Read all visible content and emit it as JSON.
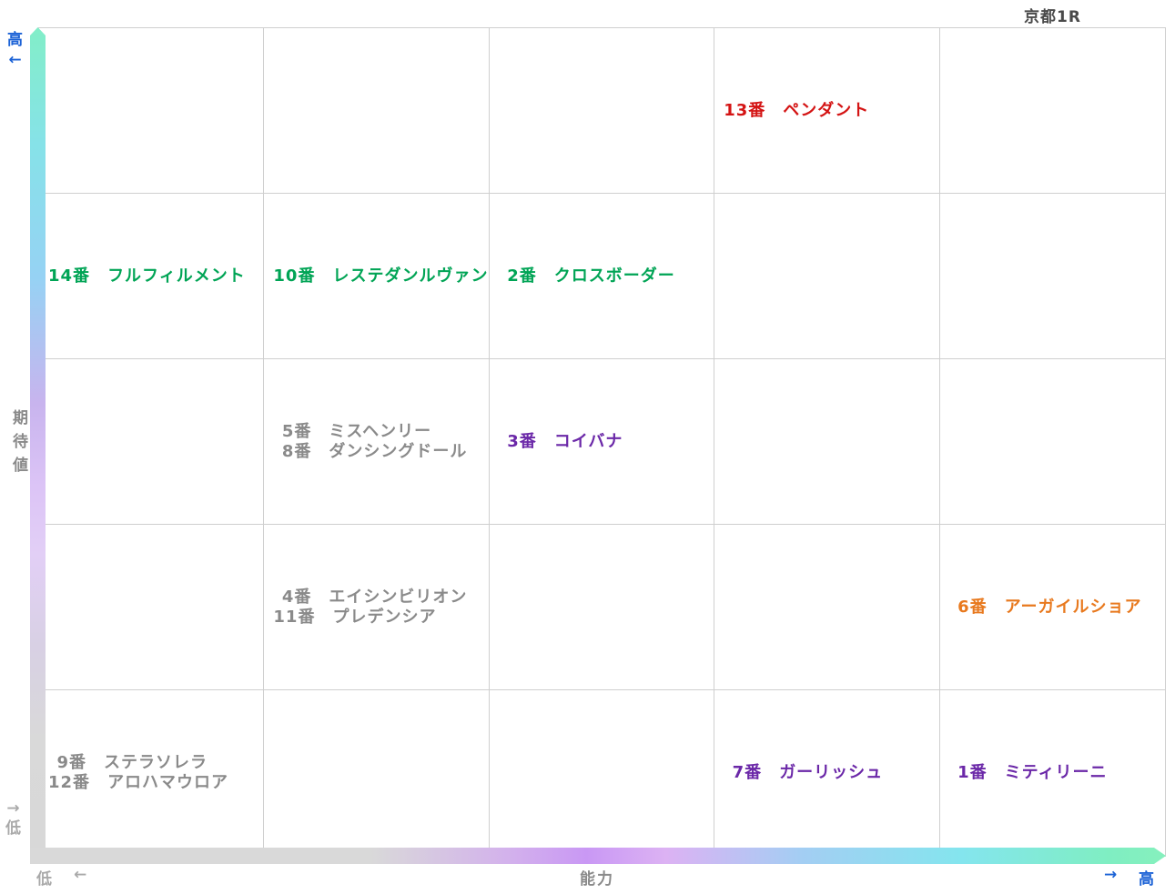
{
  "title": "京都1R",
  "axes": {
    "y_label": "期待値",
    "y_top_label": "高",
    "y_top_arrow": "←",
    "y_bottom_arrow": "→",
    "y_bottom_label": "低",
    "x_label": "能力",
    "x_left_label": "低",
    "x_left_arrow": "←",
    "x_right_arrow": "→",
    "x_right_label": "高"
  },
  "colors": {
    "axis_blue": "#1b62d6",
    "axis_gray": "#8a8a8a",
    "axis_gray_light": "#a9a9a9",
    "grid_line": "#cfcfcf",
    "title_gray": "#4a4a4a",
    "entry_red": "#d41414",
    "entry_green": "#00a455",
    "entry_purple": "#6b28a8",
    "entry_orange": "#e8791e",
    "entry_gray": "#8a8a8a"
  },
  "chart_data": {
    "type": "scatter",
    "title": "京都1R",
    "xlabel": "能力",
    "ylabel": "期待値",
    "x_axis": {
      "low_label": "低",
      "high_label": "高",
      "range": [
        1,
        5
      ]
    },
    "y_axis": {
      "low_label": "低",
      "high_label": "高",
      "range": [
        1,
        5
      ]
    },
    "grid": {
      "rows": 5,
      "cols": 5,
      "grid_on": true
    },
    "number_suffix": "番",
    "points": [
      {
        "number": 13,
        "name": "ペンダント",
        "ability": 4,
        "expectation": 5,
        "color": "#d41414"
      },
      {
        "number": 14,
        "name": "フルフィルメント",
        "ability": 1,
        "expectation": 4,
        "color": "#00a455"
      },
      {
        "number": 10,
        "name": "レステダンルヴァン",
        "ability": 2,
        "expectation": 4,
        "color": "#00a455"
      },
      {
        "number": 2,
        "name": "クロスボーダー",
        "ability": 3,
        "expectation": 4,
        "color": "#00a455"
      },
      {
        "number": 5,
        "name": "ミスヘンリー",
        "ability": 2,
        "expectation": 3,
        "color": "#8a8a8a"
      },
      {
        "number": 8,
        "name": "ダンシングドール",
        "ability": 2,
        "expectation": 3,
        "color": "#8a8a8a"
      },
      {
        "number": 3,
        "name": "コイバナ",
        "ability": 3,
        "expectation": 3,
        "color": "#6b28a8"
      },
      {
        "number": 4,
        "name": "エイシンビリオン",
        "ability": 2,
        "expectation": 2,
        "color": "#8a8a8a"
      },
      {
        "number": 11,
        "name": "プレデンシア",
        "ability": 2,
        "expectation": 2,
        "color": "#8a8a8a"
      },
      {
        "number": 6,
        "name": "アーガイルショア",
        "ability": 5,
        "expectation": 2,
        "color": "#e8791e"
      },
      {
        "number": 9,
        "name": "ステラソレラ",
        "ability": 1,
        "expectation": 1,
        "color": "#8a8a8a"
      },
      {
        "number": 12,
        "name": "アロハマウロア",
        "ability": 1,
        "expectation": 1,
        "color": "#8a8a8a"
      },
      {
        "number": 7,
        "name": "ガーリッシュ",
        "ability": 4,
        "expectation": 1,
        "color": "#6b28a8"
      },
      {
        "number": 1,
        "name": "ミティリーニ",
        "ability": 5,
        "expectation": 1,
        "color": "#6b28a8"
      }
    ]
  }
}
